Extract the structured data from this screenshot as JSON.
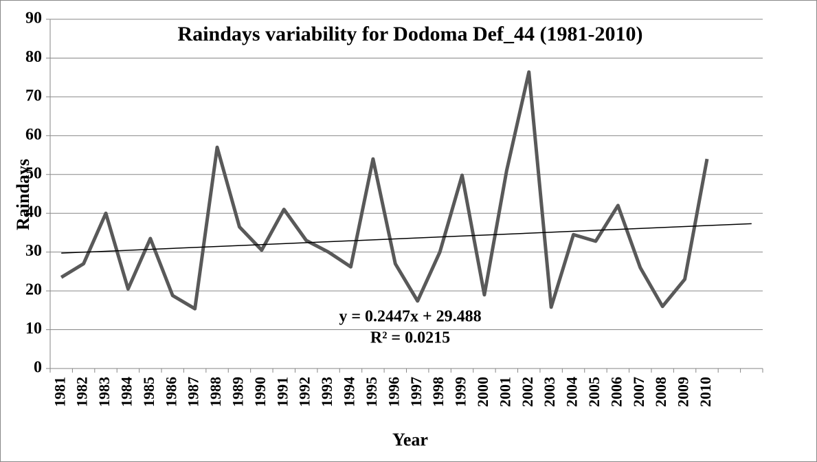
{
  "chart_data": {
    "type": "line",
    "title": "Raindays variability  for Dodoma Def_44 (1981-2010)",
    "x_label": "Year",
    "y_label": "Raindays",
    "categories": [
      "1981",
      "1982",
      "1983",
      "1984",
      "1985",
      "1986",
      "1987",
      "1988",
      "1989",
      "1990",
      "1991",
      "1992",
      "1993",
      "1994",
      "1995",
      "1996",
      "1997",
      "1998",
      "1999",
      "2000",
      "2001",
      "2002",
      "2003",
      "2004",
      "2005",
      "2006",
      "2007",
      "2008",
      "2009",
      "2010",
      null,
      null
    ],
    "series": [
      {
        "name": "Raindays",
        "color": "#595959",
        "values": [
          23.5,
          27,
          40,
          20.5,
          33.5,
          18.8,
          15.4,
          57,
          36.5,
          30.5,
          41,
          33,
          30,
          26.2,
          54,
          27,
          17.4,
          30,
          49.8,
          19,
          51,
          76.4,
          15.8,
          34.5,
          32.8,
          42,
          26,
          16,
          23,
          54,
          null,
          null
        ]
      }
    ],
    "trendline": {
      "slope": 0.2447,
      "intercept": 29.488,
      "color": "#000000",
      "equation": "y = 0.2447x + 29.488",
      "r_squared": "R² = 0.0215"
    },
    "ylim": [
      0,
      90
    ],
    "yticks": [
      0,
      10,
      20,
      30,
      40,
      50,
      60,
      70,
      80,
      90
    ],
    "grid": true
  }
}
